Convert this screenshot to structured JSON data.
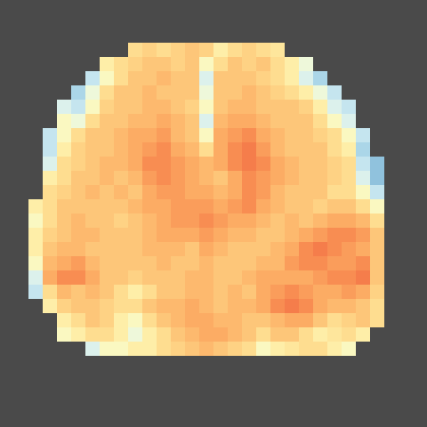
{
  "chart_data": {
    "type": "heatmap",
    "color": "RdYlBu",
    "tick_labels": false,
    "color_range": [
      -1,
      1
    ],
    "cells": [
      [
        null,
        null,
        null,
        null,
        null,
        null,
        null,
        null,
        null,
        null,
        null,
        null,
        null,
        null,
        null,
        null,
        null,
        null,
        null,
        null,
        null,
        null,
        null,
        null,
        null,
        null,
        null,
        null,
        null,
        null
      ],
      [
        null,
        null,
        null,
        null,
        null,
        null,
        null,
        null,
        null,
        null,
        null,
        null,
        null,
        null,
        null,
        null,
        null,
        null,
        null,
        null,
        null,
        null,
        null,
        null,
        null,
        null,
        null,
        null,
        null,
        null
      ],
      [
        null,
        null,
        null,
        null,
        null,
        null,
        null,
        null,
        null,
        null,
        null,
        null,
        null,
        null,
        null,
        null,
        null,
        null,
        null,
        null,
        null,
        null,
        null,
        null,
        null,
        null,
        null,
        null,
        null,
        null
      ],
      [
        null,
        null,
        null,
        null,
        null,
        null,
        null,
        null,
        null,
        0.2,
        0.25,
        0.2,
        0.25,
        0.3,
        0.25,
        0.1,
        0.2,
        0.25,
        0.2,
        0.15,
        null,
        null,
        null,
        null,
        null,
        null,
        null,
        null,
        null,
        null
      ],
      [
        null,
        null,
        null,
        null,
        null,
        null,
        null,
        0.1,
        0.2,
        0.25,
        0.3,
        0.3,
        0.25,
        0.3,
        0.0,
        0.2,
        0.3,
        0.25,
        0.3,
        0.2,
        0.1,
        -0.1,
        null,
        null,
        null,
        null,
        null,
        null,
        null,
        null
      ],
      [
        null,
        null,
        null,
        null,
        null,
        null,
        -0.3,
        0.0,
        0.2,
        0.3,
        0.3,
        0.35,
        0.3,
        0.3,
        -0.2,
        0.3,
        0.3,
        0.3,
        0.25,
        0.2,
        0.1,
        -0.2,
        -0.4,
        null,
        null,
        null,
        null,
        null,
        null,
        null
      ],
      [
        null,
        null,
        null,
        null,
        null,
        -0.4,
        -0.1,
        0.2,
        0.3,
        0.3,
        0.35,
        0.3,
        0.3,
        0.3,
        -0.1,
        0.3,
        0.3,
        0.35,
        0.3,
        0.25,
        0.2,
        0.1,
        -0.1,
        -0.3,
        null,
        null,
        null,
        null,
        null,
        null
      ],
      [
        null,
        null,
        null,
        null,
        -0.2,
        -0.3,
        0.0,
        0.25,
        0.3,
        0.3,
        0.35,
        0.35,
        0.3,
        0.25,
        0.0,
        0.3,
        0.35,
        0.35,
        0.3,
        0.3,
        0.3,
        0.25,
        0.1,
        -0.2,
        -0.3,
        null,
        null,
        null,
        null,
        null
      ],
      [
        null,
        null,
        null,
        null,
        0.0,
        -0.1,
        0.2,
        0.3,
        0.3,
        0.35,
        0.35,
        0.4,
        0.35,
        0.3,
        -0.2,
        0.35,
        0.4,
        0.4,
        0.35,
        0.3,
        0.3,
        0.3,
        0.2,
        0.0,
        -0.2,
        null,
        null,
        null,
        null,
        null
      ],
      [
        null,
        null,
        null,
        -0.3,
        0.0,
        0.2,
        0.3,
        0.3,
        0.35,
        0.4,
        0.4,
        0.45,
        0.35,
        0.3,
        0.0,
        0.4,
        0.45,
        0.5,
        0.4,
        0.35,
        0.3,
        0.3,
        0.25,
        0.2,
        0.0,
        -0.3,
        null,
        null,
        null,
        null
      ],
      [
        null,
        null,
        null,
        -0.3,
        0.1,
        0.25,
        0.3,
        0.3,
        0.35,
        0.4,
        0.45,
        0.5,
        0.4,
        0.35,
        0.2,
        0.4,
        0.5,
        0.55,
        0.45,
        0.35,
        0.3,
        0.3,
        0.3,
        0.2,
        0.1,
        -0.4,
        null,
        null,
        null,
        null
      ],
      [
        null,
        null,
        null,
        -0.2,
        0.2,
        0.25,
        0.3,
        0.35,
        0.35,
        0.4,
        0.5,
        0.5,
        0.45,
        0.4,
        0.35,
        0.4,
        0.5,
        0.55,
        0.5,
        0.4,
        0.35,
        0.3,
        0.3,
        0.25,
        0.2,
        -0.3,
        -0.5,
        null,
        null,
        null
      ],
      [
        null,
        null,
        null,
        0.1,
        0.2,
        0.3,
        0.3,
        0.35,
        0.3,
        0.35,
        0.45,
        0.5,
        0.45,
        0.4,
        0.35,
        0.3,
        0.4,
        0.5,
        0.45,
        0.4,
        0.35,
        0.3,
        0.3,
        0.25,
        0.2,
        -0.2,
        -0.5,
        null,
        null,
        null
      ],
      [
        null,
        null,
        null,
        0.2,
        0.25,
        0.3,
        0.35,
        0.3,
        0.35,
        0.3,
        0.4,
        0.45,
        0.45,
        0.4,
        0.4,
        0.35,
        0.4,
        0.5,
        0.45,
        0.35,
        0.3,
        0.3,
        0.3,
        0.2,
        0.2,
        0.0,
        -0.3,
        null,
        null,
        null
      ],
      [
        null,
        null,
        0.1,
        0.2,
        0.3,
        0.3,
        0.3,
        0.3,
        0.3,
        0.35,
        0.4,
        0.4,
        0.45,
        0.45,
        0.45,
        0.4,
        0.45,
        0.5,
        0.4,
        0.35,
        0.3,
        0.3,
        0.25,
        0.3,
        0.3,
        0.2,
        0.0,
        null,
        null,
        null
      ],
      [
        null,
        null,
        0.0,
        0.2,
        0.3,
        0.35,
        0.3,
        0.3,
        0.25,
        0.3,
        0.35,
        0.4,
        0.45,
        0.45,
        0.5,
        0.45,
        0.4,
        0.4,
        0.35,
        0.3,
        0.35,
        0.3,
        0.35,
        0.4,
        0.4,
        0.35,
        0.2,
        null,
        null,
        null
      ],
      [
        null,
        null,
        0.1,
        0.25,
        0.3,
        0.35,
        0.35,
        0.3,
        0.3,
        0.3,
        0.35,
        0.4,
        0.4,
        0.4,
        0.45,
        0.4,
        0.35,
        0.35,
        0.3,
        0.3,
        0.35,
        0.4,
        0.45,
        0.5,
        0.5,
        0.45,
        0.3,
        null,
        null,
        null
      ],
      [
        null,
        null,
        0.1,
        0.3,
        0.35,
        0.35,
        0.3,
        0.3,
        0.3,
        0.3,
        0.35,
        0.35,
        0.35,
        0.3,
        0.4,
        0.35,
        0.3,
        0.3,
        0.3,
        0.35,
        0.4,
        0.5,
        0.55,
        0.5,
        0.45,
        0.4,
        0.3,
        null,
        null,
        null
      ],
      [
        null,
        null,
        0.0,
        0.35,
        0.4,
        0.45,
        0.35,
        0.3,
        0.3,
        0.3,
        0.3,
        0.35,
        0.3,
        0.3,
        0.35,
        0.3,
        0.3,
        0.3,
        0.35,
        0.35,
        0.45,
        0.5,
        0.5,
        0.45,
        0.45,
        0.5,
        0.3,
        null,
        null,
        null
      ],
      [
        null,
        null,
        -0.2,
        0.4,
        0.5,
        0.5,
        0.4,
        0.3,
        0.3,
        0.25,
        0.3,
        0.3,
        0.3,
        0.35,
        0.35,
        0.3,
        0.3,
        0.35,
        0.4,
        0.4,
        0.4,
        0.4,
        0.45,
        0.5,
        0.5,
        0.55,
        0.3,
        null,
        null,
        null
      ],
      [
        null,
        null,
        -0.3,
        0.2,
        0.35,
        0.3,
        0.35,
        0.3,
        0.2,
        0.1,
        0.2,
        0.3,
        0.3,
        0.35,
        0.35,
        0.3,
        0.35,
        0.3,
        0.4,
        0.45,
        0.5,
        0.45,
        0.4,
        0.4,
        0.45,
        0.4,
        0.25,
        null,
        null,
        null
      ],
      [
        null,
        null,
        null,
        0.1,
        0.25,
        0.3,
        0.3,
        0.25,
        0.2,
        0.2,
        0.3,
        0.35,
        0.35,
        0.4,
        0.35,
        0.3,
        0.35,
        0.35,
        0.4,
        0.5,
        0.55,
        0.5,
        0.4,
        0.35,
        0.35,
        0.3,
        0.2,
        null,
        null,
        null
      ],
      [
        null,
        null,
        null,
        null,
        0.1,
        0.2,
        0.3,
        0.25,
        0.1,
        0.0,
        0.2,
        0.3,
        0.35,
        0.4,
        0.4,
        0.35,
        0.35,
        0.3,
        0.3,
        0.35,
        0.4,
        0.4,
        0.3,
        0.2,
        0.25,
        0.3,
        0.2,
        null,
        null,
        null
      ],
      [
        null,
        null,
        null,
        null,
        0.0,
        0.1,
        0.2,
        0.2,
        0.1,
        -0.1,
        0.1,
        0.2,
        0.3,
        0.35,
        0.4,
        0.4,
        0.35,
        0.3,
        0.2,
        0.3,
        0.3,
        0.2,
        0.1,
        0.15,
        0.2,
        0.1,
        null,
        null,
        null,
        null
      ],
      [
        null,
        null,
        null,
        null,
        null,
        null,
        -0.2,
        0.0,
        0.0,
        0.1,
        0.1,
        0.2,
        0.25,
        0.3,
        0.35,
        0.3,
        0.25,
        0.2,
        0.0,
        0.1,
        0.15,
        0.2,
        0.2,
        0.1,
        0.0,
        null,
        null,
        null,
        null,
        null
      ],
      [
        null,
        null,
        null,
        null,
        null,
        null,
        null,
        null,
        null,
        null,
        null,
        null,
        null,
        null,
        null,
        null,
        null,
        null,
        null,
        null,
        null,
        null,
        null,
        null,
        null,
        null,
        null,
        null,
        null,
        null
      ],
      [
        null,
        null,
        null,
        null,
        null,
        null,
        null,
        null,
        null,
        null,
        null,
        null,
        null,
        null,
        null,
        null,
        null,
        null,
        null,
        null,
        null,
        null,
        null,
        null,
        null,
        null,
        null,
        null,
        null,
        null
      ],
      [
        null,
        null,
        null,
        null,
        null,
        null,
        null,
        null,
        null,
        null,
        null,
        null,
        null,
        null,
        null,
        null,
        null,
        null,
        null,
        null,
        null,
        null,
        null,
        null,
        null,
        null,
        null,
        null,
        null,
        null
      ],
      [
        null,
        null,
        null,
        null,
        null,
        null,
        null,
        null,
        null,
        null,
        null,
        null,
        null,
        null,
        null,
        null,
        null,
        null,
        null,
        null,
        null,
        null,
        null,
        null,
        null,
        null,
        null,
        null,
        null,
        null
      ],
      [
        null,
        null,
        null,
        null,
        null,
        null,
        null,
        null,
        null,
        null,
        null,
        null,
        null,
        null,
        null,
        null,
        null,
        null,
        null,
        null,
        null,
        null,
        null,
        null,
        null,
        null,
        null,
        null,
        null,
        null
      ]
    ]
  }
}
